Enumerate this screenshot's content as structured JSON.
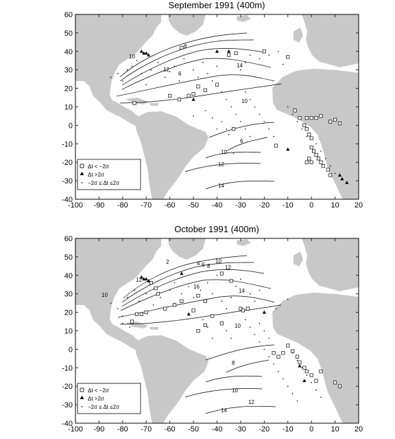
{
  "chart_data": [
    {
      "type": "scatter",
      "title": "September 1991 (400m)",
      "xlim": [
        -100,
        20
      ],
      "ylim": [
        -40,
        60
      ],
      "xticks": [
        -100,
        -90,
        -80,
        -70,
        -60,
        -50,
        -40,
        -30,
        -20,
        -10,
        0,
        10,
        20
      ],
      "yticks": [
        -40,
        -30,
        -20,
        -10,
        0,
        10,
        20,
        30,
        40,
        50,
        60
      ],
      "legend_position": "lower-left",
      "legend": [
        "Δt < −2σ",
        "Δt >2σ",
        "−2σ ≤ Δt ≤2σ"
      ],
      "series": [
        {
          "marker": "square",
          "points": [
            [
              -35,
              38
            ],
            [
              -32,
              39
            ],
            [
              -20,
              40
            ],
            [
              -10,
              37
            ],
            [
              -55,
              42
            ],
            [
              -40,
              22
            ],
            [
              -45,
              19
            ],
            [
              -48,
              21
            ],
            [
              -50,
              17
            ],
            [
              -52,
              16
            ],
            [
              -56,
              14
            ],
            [
              -60,
              16
            ],
            [
              -75,
              12
            ],
            [
              -33,
              -2
            ],
            [
              -15,
              -11
            ],
            [
              -7,
              8
            ],
            [
              -5,
              4
            ],
            [
              -2,
              4
            ],
            [
              0,
              4
            ],
            [
              2,
              4
            ],
            [
              4,
              5
            ],
            [
              8,
              2
            ],
            [
              10,
              3
            ],
            [
              12,
              1
            ],
            [
              -3,
              0
            ],
            [
              -2,
              -2
            ],
            [
              -1,
              -5
            ],
            [
              0,
              -7
            ],
            [
              0,
              -12
            ],
            [
              1,
              -14
            ],
            [
              2,
              -16
            ],
            [
              3,
              -18
            ],
            [
              4,
              -20
            ],
            [
              5,
              -22
            ],
            [
              7,
              -24
            ],
            [
              8,
              -27
            ],
            [
              -1,
              -18
            ],
            [
              -2,
              -20
            ],
            [
              0,
              -20
            ]
          ]
        },
        {
          "marker": "triangle",
          "points": [
            [
              -72,
              40
            ],
            [
              -71,
              39
            ],
            [
              -70,
              39
            ],
            [
              -69,
              38
            ],
            [
              -50,
              14
            ],
            [
              -40,
              40
            ],
            [
              -35,
              40
            ],
            [
              -10,
              -13
            ],
            [
              12,
              -27
            ],
            [
              13,
              -29
            ],
            [
              15,
              -31
            ]
          ]
        },
        {
          "marker": "dot",
          "points": [
            [
              -85,
              26
            ],
            [
              -82,
              28
            ],
            [
              -80,
              24
            ],
            [
              -78,
              30
            ],
            [
              -76,
              32
            ],
            [
              -74,
              35
            ],
            [
              -72,
              28
            ],
            [
              -70,
              22
            ],
            [
              -68,
              30
            ],
            [
              -65,
              34
            ],
            [
              -62,
              26
            ],
            [
              -60,
              29
            ],
            [
              -58,
              32
            ],
            [
              -56,
              24
            ],
            [
              -54,
              36
            ],
            [
              -50,
              30
            ],
            [
              -48,
              26
            ],
            [
              -46,
              34
            ],
            [
              -44,
              28
            ],
            [
              -42,
              24
            ],
            [
              -40,
              32
            ],
            [
              -38,
              18
            ],
            [
              -36,
              14
            ],
            [
              -34,
              10
            ],
            [
              -32,
              6
            ],
            [
              -30,
              2
            ],
            [
              -28,
              -2
            ],
            [
              -26,
              -6
            ],
            [
              -30,
              30
            ],
            [
              -28,
              34
            ],
            [
              -26,
              38
            ],
            [
              -22,
              36
            ],
            [
              -18,
              38
            ],
            [
              -14,
              40
            ],
            [
              -12,
              33
            ],
            [
              -28,
              18
            ],
            [
              -26,
              14
            ],
            [
              -24,
              10
            ],
            [
              -22,
              6
            ],
            [
              -20,
              2
            ],
            [
              -18,
              -2
            ],
            [
              -16,
              -6
            ],
            [
              -10,
              10
            ],
            [
              -8,
              6
            ],
            [
              -6,
              2
            ],
            [
              -4,
              -2
            ],
            [
              -2,
              -6
            ],
            [
              2,
              -10
            ],
            [
              4,
              -14
            ],
            [
              6,
              -18
            ],
            [
              8,
              -22
            ],
            [
              10,
              -26
            ],
            [
              -50,
              5
            ],
            [
              -45,
              8
            ],
            [
              -42,
              4
            ],
            [
              -38,
              2
            ],
            [
              -36,
              -2
            ],
            [
              -35,
              -5
            ],
            [
              -40,
              -2
            ],
            [
              -33,
              -15
            ]
          ]
        }
      ],
      "contour_labels": [
        "10",
        "8",
        "12",
        "6",
        "14",
        "10",
        "6",
        "10",
        "12",
        "14"
      ]
    },
    {
      "type": "scatter",
      "title": "October 1991 (400m)",
      "xlim": [
        -100,
        20
      ],
      "ylim": [
        -40,
        60
      ],
      "xticks": [
        -100,
        -90,
        -80,
        -70,
        -60,
        -50,
        -40,
        -30,
        -20,
        -10,
        0,
        10,
        20
      ],
      "yticks": [
        -40,
        -30,
        -20,
        -10,
        0,
        10,
        20,
        30,
        40,
        50,
        60
      ],
      "legend_position": "lower-left",
      "legend": [
        "Δt < −2σ",
        "Δt >2σ",
        "−2σ ≤ Δt ≤2σ"
      ],
      "series": [
        {
          "marker": "square",
          "points": [
            [
              -38,
              41
            ],
            [
              -34,
              37
            ],
            [
              -48,
              29
            ],
            [
              -45,
              26
            ],
            [
              -55,
              26
            ],
            [
              -58,
              24
            ],
            [
              -62,
              22
            ],
            [
              -65,
              30
            ],
            [
              -66,
              33
            ],
            [
              -68,
              36
            ],
            [
              -70,
              20
            ],
            [
              -72,
              19
            ],
            [
              -74,
              19
            ],
            [
              -76,
              15
            ],
            [
              -50,
              21
            ],
            [
              -42,
              18
            ],
            [
              -30,
              22
            ],
            [
              -29,
              21
            ],
            [
              -27,
              22
            ],
            [
              -45,
              13
            ],
            [
              -48,
              10
            ],
            [
              -38,
              14
            ],
            [
              -16,
              -2
            ],
            [
              -14,
              -4
            ],
            [
              -12,
              -2
            ],
            [
              -10,
              2
            ],
            [
              -8,
              -1
            ],
            [
              -6,
              -4
            ],
            [
              -5,
              -7
            ],
            [
              -3,
              -10
            ],
            [
              -2,
              -12
            ],
            [
              0,
              -14
            ],
            [
              2,
              -17
            ],
            [
              4,
              -12
            ],
            [
              10,
              -18
            ],
            [
              12,
              -20
            ]
          ]
        },
        {
          "marker": "triangle",
          "points": [
            [
              -72,
              39
            ],
            [
              -71,
              38
            ],
            [
              -70,
              38
            ],
            [
              -69,
              37
            ],
            [
              -55,
              41
            ],
            [
              -52,
              19
            ],
            [
              -20,
              20
            ],
            [
              -5,
              -9
            ],
            [
              -3,
              -17
            ]
          ]
        },
        {
          "marker": "dot",
          "points": [
            [
              -85,
              25
            ],
            [
              -82,
              22
            ],
            [
              -80,
              18
            ],
            [
              -78,
              28
            ],
            [
              -75,
              32
            ],
            [
              -73,
              26
            ],
            [
              -70,
              30
            ],
            [
              -67,
              24
            ],
            [
              -64,
              28
            ],
            [
              -60,
              32
            ],
            [
              -58,
              36
            ],
            [
              -55,
              30
            ],
            [
              -52,
              34
            ],
            [
              -50,
              28
            ],
            [
              -47,
              32
            ],
            [
              -44,
              36
            ],
            [
              -42,
              30
            ],
            [
              -40,
              40
            ],
            [
              -38,
              26
            ],
            [
              -36,
              22
            ],
            [
              -34,
              28
            ],
            [
              -32,
              34
            ],
            [
              -30,
              38
            ],
            [
              -26,
              30
            ],
            [
              -24,
              26
            ],
            [
              -22,
              32
            ],
            [
              -28,
              16
            ],
            [
              -26,
              12
            ],
            [
              -24,
              8
            ],
            [
              -22,
              4
            ],
            [
              -20,
              0
            ],
            [
              -18,
              -4
            ],
            [
              -16,
              -8
            ],
            [
              -14,
              -12
            ],
            [
              -12,
              -16
            ],
            [
              -10,
              -20
            ],
            [
              -8,
              -24
            ],
            [
              -6,
              -28
            ],
            [
              -22,
              14
            ],
            [
              -20,
              10
            ],
            [
              -18,
              6
            ],
            [
              -8,
              -2
            ],
            [
              -6,
              -6
            ],
            [
              -4,
              -10
            ],
            [
              -2,
              -14
            ],
            [
              0,
              -18
            ],
            [
              2,
              -22
            ],
            [
              4,
              -26
            ],
            [
              -46,
              16
            ],
            [
              -44,
              12
            ],
            [
              -42,
              6
            ],
            [
              -36,
              10
            ],
            [
              -34,
              6
            ],
            [
              -10,
              27
            ],
            [
              -15,
              22
            ],
            [
              -80,
              14
            ],
            [
              -77,
              12
            ]
          ]
        }
      ],
      "contour_labels": [
        "2",
        "10",
        "4",
        "6",
        "8",
        "12",
        "16",
        "10",
        "12",
        "14",
        "10",
        "8",
        "10",
        "12",
        "14"
      ]
    }
  ]
}
